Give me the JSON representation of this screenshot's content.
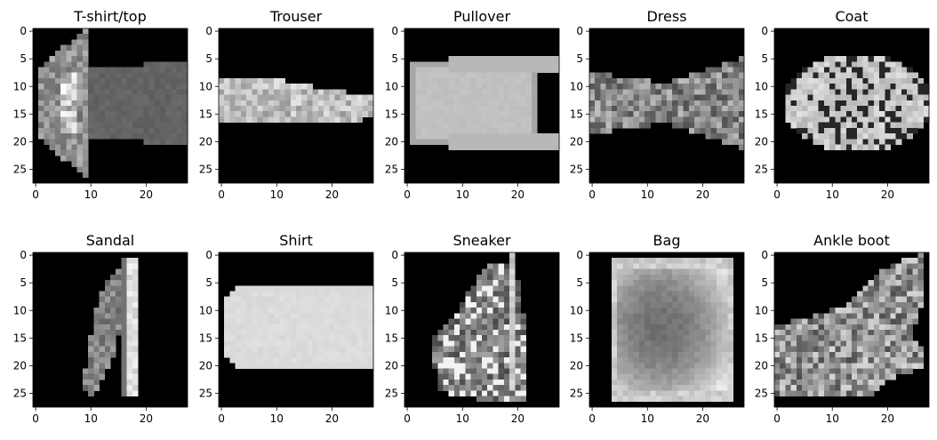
{
  "chart_data": {
    "type": "heatmap",
    "colormap": "gray",
    "image_size": 28,
    "xlim": [
      -0.5,
      27.5
    ],
    "ylim": [
      27.5,
      -0.5
    ],
    "xticks": [
      0,
      10,
      20
    ],
    "yticks": [
      0,
      5,
      10,
      15,
      20,
      25
    ],
    "panels": [
      {
        "title": "T-shirt/top"
      },
      {
        "title": "Trouser"
      },
      {
        "title": "Pullover"
      },
      {
        "title": "Dress"
      },
      {
        "title": "Coat"
      },
      {
        "title": "Sandal"
      },
      {
        "title": "Shirt"
      },
      {
        "title": "Sneaker"
      },
      {
        "title": "Bag"
      },
      {
        "title": "Ankle boot"
      }
    ]
  }
}
